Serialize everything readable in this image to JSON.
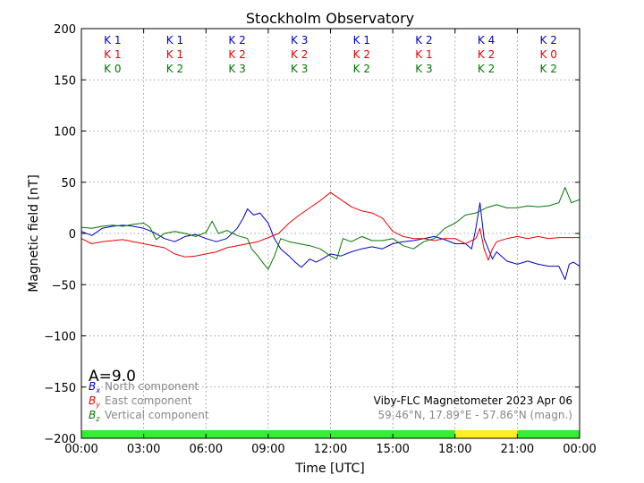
{
  "chart_data": {
    "type": "line",
    "title": "Stockholm Observatory",
    "xlabel": "Time [UTC]",
    "ylabel": "Magnetic field [nT]",
    "xlim": [
      0,
      24
    ],
    "ylim": [
      -200,
      200
    ],
    "x_ticks": [
      0,
      3,
      6,
      9,
      12,
      15,
      18,
      21,
      24
    ],
    "x_tick_labels": [
      "00:00",
      "03:00",
      "06:00",
      "09:00",
      "12:00",
      "15:00",
      "18:00",
      "21:00",
      "00:00"
    ],
    "y_ticks": [
      -200,
      -150,
      -100,
      -50,
      0,
      50,
      100,
      150,
      200
    ],
    "y_tick_labels": [
      "−200",
      "−150",
      "−100",
      "−50",
      "0",
      "50",
      "100",
      "150",
      "200"
    ],
    "grid": true,
    "k_index_rows": [
      {
        "color": "#0000cc",
        "labels": [
          "K 1",
          "K 1",
          "K 2",
          "K 3",
          "K 1",
          "K 2",
          "K 4",
          "K 2"
        ]
      },
      {
        "color": "#ee0000",
        "labels": [
          "K 1",
          "K 1",
          "K 2",
          "K 2",
          "K 2",
          "K 1",
          "K 2",
          "K 0"
        ]
      },
      {
        "color": "#007700",
        "labels": [
          "K 0",
          "K 2",
          "K 3",
          "K 3",
          "K 2",
          "K 3",
          "K 2",
          "K 2"
        ]
      }
    ],
    "a_index": "A=9.0",
    "legend": [
      {
        "symbol": "B",
        "sub": "x",
        "label": "North component",
        "color": "#0000cc"
      },
      {
        "symbol": "B",
        "sub": "y",
        "label": "East component",
        "color": "#ee0000"
      },
      {
        "symbol": "B",
        "sub": "z",
        "label": "Vertical component",
        "color": "#007700"
      }
    ],
    "station_info": "Viby-FLC Magnetometer 2023 Apr 06",
    "coords": "59.46°N, 17.89°E - 57.86°N (magn.)",
    "activity_bar": [
      {
        "start": 0,
        "end": 18,
        "color": "#33ee33"
      },
      {
        "start": 18,
        "end": 21,
        "color": "#ffee22"
      },
      {
        "start": 21,
        "end": 24,
        "color": "#33ee33"
      }
    ],
    "series": [
      {
        "name": "North component (Bx)",
        "color": "#0000cc",
        "x": [
          0,
          0.5,
          1,
          1.5,
          2,
          2.5,
          3,
          3.5,
          4,
          4.5,
          5,
          5.5,
          6,
          6.5,
          7,
          7.5,
          7.8,
          8,
          8.3,
          8.6,
          9,
          9.3,
          9.6,
          10,
          10.3,
          10.6,
          11,
          11.3,
          11.6,
          12,
          12.5,
          13,
          13.5,
          14,
          14.5,
          15,
          15.5,
          16,
          16.5,
          17,
          17.5,
          18,
          18.5,
          18.8,
          19,
          19.2,
          19.4,
          19.6,
          19.8,
          20,
          20.5,
          21,
          21.5,
          22,
          22.5,
          23,
          23.3,
          23.5,
          23.7,
          24
        ],
        "y": [
          2,
          -2,
          5,
          7,
          8,
          7,
          5,
          1,
          -5,
          -8,
          -3,
          -1,
          -5,
          -8,
          -5,
          5,
          15,
          24,
          18,
          20,
          10,
          -5,
          -15,
          -22,
          -28,
          -33,
          -25,
          -28,
          -25,
          -20,
          -22,
          -18,
          -15,
          -13,
          -15,
          -10,
          -8,
          -7,
          -5,
          -3,
          -6,
          -10,
          -10,
          -15,
          5,
          30,
          -5,
          -15,
          -25,
          -18,
          -27,
          -30,
          -27,
          -30,
          -32,
          -32,
          -45,
          -30,
          -28,
          -32
        ]
      },
      {
        "name": "East component (By)",
        "color": "#ee0000",
        "x": [
          0,
          0.5,
          1,
          1.5,
          2,
          2.5,
          3,
          3.5,
          4,
          4.5,
          5,
          5.5,
          6,
          6.5,
          7,
          7.5,
          8,
          8.5,
          9,
          9.5,
          10,
          10.5,
          11,
          11.5,
          12,
          12.5,
          13,
          13.5,
          14,
          14.5,
          15,
          15.5,
          16,
          16.5,
          17,
          17.5,
          18,
          18.5,
          19,
          19.2,
          19.4,
          19.6,
          19.8,
          20,
          20.5,
          21,
          21.5,
          22,
          22.5,
          23,
          23.5,
          24
        ],
        "y": [
          -5,
          -10,
          -8,
          -7,
          -6,
          -8,
          -10,
          -12,
          -14,
          -20,
          -23,
          -22,
          -20,
          -18,
          -14,
          -12,
          -10,
          -8,
          -4,
          0,
          10,
          18,
          25,
          32,
          40,
          33,
          26,
          22,
          20,
          15,
          2,
          -3,
          -5,
          -5,
          -7,
          -5,
          -5,
          -10,
          -5,
          5,
          -15,
          -26,
          -15,
          -8,
          -5,
          -3,
          -5,
          -3,
          -5,
          -4,
          -4,
          -4
        ]
      },
      {
        "name": "Vertical component (Bz)",
        "color": "#007700",
        "x": [
          0,
          0.5,
          1,
          1.5,
          2,
          2.5,
          3,
          3.3,
          3.6,
          4,
          4.5,
          5,
          5.5,
          6,
          6.3,
          6.6,
          7,
          7.5,
          8,
          8.2,
          8.5,
          8.8,
          9,
          9.3,
          9.6,
          10,
          10.5,
          11,
          11.5,
          12,
          12.3,
          12.6,
          13,
          13.5,
          14,
          14.5,
          15,
          15.5,
          16,
          16.5,
          17,
          17.5,
          18,
          18.5,
          19,
          19.5,
          20,
          20.5,
          21,
          21.5,
          22,
          22.5,
          23,
          23.3,
          23.6,
          24
        ],
        "y": [
          6,
          5,
          7,
          8,
          7,
          9,
          10,
          6,
          -6,
          0,
          2,
          0,
          -3,
          1,
          12,
          0,
          3,
          -2,
          -5,
          -15,
          -22,
          -30,
          -35,
          -22,
          -5,
          -8,
          -10,
          -12,
          -15,
          -22,
          -25,
          -5,
          -8,
          -3,
          -7,
          -7,
          -5,
          -12,
          -15,
          -8,
          -5,
          5,
          10,
          18,
          20,
          25,
          28,
          25,
          25,
          27,
          26,
          27,
          30,
          45,
          30,
          33
        ]
      }
    ]
  }
}
